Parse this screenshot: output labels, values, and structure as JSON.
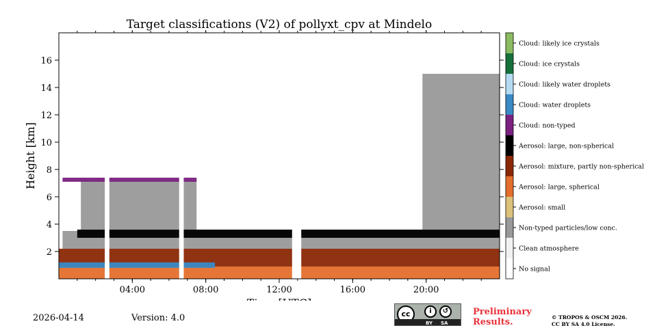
{
  "chart_data": {
    "type": "heatmap",
    "title": "Target classifications (V2) of pollyxt_cpv at Mindelo",
    "xlabel": "Time [UTC]",
    "ylabel": "Height [km]",
    "xlim_hours": [
      0,
      24
    ],
    "ylim_km": [
      0,
      18
    ],
    "x_ticks": [
      {
        "hour": 4,
        "label": "04:00"
      },
      {
        "hour": 8,
        "label": "08:00"
      },
      {
        "hour": 12,
        "label": "12:00"
      },
      {
        "hour": 16,
        "label": "16:00"
      },
      {
        "hour": 20,
        "label": "20:00"
      }
    ],
    "y_ticks": [
      {
        "km": 2,
        "label": "2"
      },
      {
        "km": 4,
        "label": "4"
      },
      {
        "km": 6,
        "label": "6"
      },
      {
        "km": 8,
        "label": "8"
      },
      {
        "km": 10,
        "label": "10"
      },
      {
        "km": 12,
        "label": "12"
      },
      {
        "km": 14,
        "label": "14"
      },
      {
        "km": 16,
        "label": "16"
      }
    ],
    "classes": [
      {
        "label": "No signal",
        "color": "#ffffff"
      },
      {
        "label": "Clean atmosphere",
        "color": "#f2f2f2"
      },
      {
        "label": "Non-typed particles/low conc.",
        "color": "#999999"
      },
      {
        "label": "Aerosol: small",
        "color": "#dcc27a"
      },
      {
        "label": "Aerosol: large, spherical",
        "color": "#e46f2c"
      },
      {
        "label": "Aerosol: mixture, partly non-spherical",
        "color": "#8a2806"
      },
      {
        "label": "Aerosol: large, non-spherical",
        "color": "#000000"
      },
      {
        "label": "Cloud: non-typed",
        "color": "#7b2181"
      },
      {
        "label": "Cloud: water droplets",
        "color": "#3a8ac6"
      },
      {
        "label": "Cloud: likely water droplets",
        "color": "#b4dbf2"
      },
      {
        "label": "Cloud: ice crystals",
        "color": "#16703a"
      },
      {
        "label": "Cloud: likely ice crystals",
        "color": "#8bbb60"
      }
    ],
    "layers": [
      {
        "class": "Aerosol: large, spherical",
        "t_start": 0.0,
        "t_end": 24.0,
        "h_bottom_km": 0.0,
        "h_top_km": 0.9
      },
      {
        "class": "Aerosol: mixture, partly non-spherical",
        "t_start": 0.0,
        "t_end": 24.0,
        "h_bottom_km": 0.9,
        "h_top_km": 2.2
      },
      {
        "class": "Non-typed particles/low conc.",
        "t_start": 0.2,
        "t_end": 24.0,
        "h_bottom_km": 2.2,
        "h_top_km": 3.5
      },
      {
        "class": "Aerosol: large, non-spherical",
        "t_start": 1.0,
        "t_end": 24.0,
        "h_bottom_km": 3.0,
        "h_top_km": 3.6
      },
      {
        "class": "Non-typed particles/low conc.",
        "t_start": 1.2,
        "t_end": 7.5,
        "h_bottom_km": 3.6,
        "h_top_km": 7.2
      },
      {
        "class": "Non-typed particles/low conc.",
        "t_start": 19.8,
        "t_end": 24.0,
        "h_bottom_km": 3.6,
        "h_top_km": 15.0
      },
      {
        "class": "Cloud: non-typed",
        "t_start": 0.2,
        "t_end": 7.5,
        "h_bottom_km": 7.1,
        "h_top_km": 7.4
      },
      {
        "class": "Cloud: water droplets",
        "t_start": 0.0,
        "t_end": 8.5,
        "h_bottom_km": 0.8,
        "h_top_km": 1.2
      }
    ],
    "data_gaps_hours": [
      [
        2.5,
        2.75
      ],
      [
        6.55,
        6.8
      ],
      [
        12.7,
        13.2
      ]
    ]
  },
  "footer": {
    "date": "2026-04-14",
    "version": "Version: 4.0",
    "preliminary_line1": "Preliminary",
    "preliminary_line2": "Results.",
    "copyright_line1": "© TROPOS & OSCM 2026.",
    "copyright_line2": "CC BY SA 4.0 License.",
    "cc_main": "cc",
    "cc_by": "BY",
    "cc_sa": "SA",
    "cc_person_glyph": "i",
    "cc_share_glyph": "↺"
  },
  "icons": {
    "cc_logo": "creative-commons-icon",
    "by": "attribution-icon",
    "sa": "share-alike-icon"
  }
}
